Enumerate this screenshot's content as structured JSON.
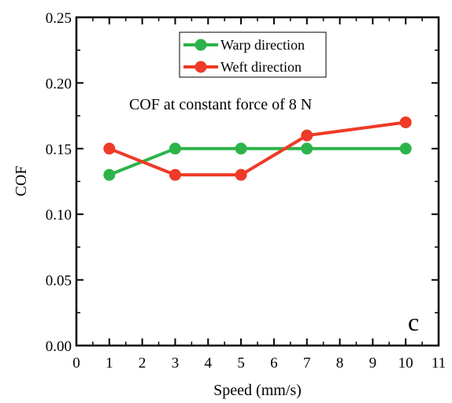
{
  "chart_data": {
    "type": "line",
    "title": "",
    "xlabel": "Speed (mm/s)",
    "ylabel": "COF",
    "xlim": [
      0,
      11
    ],
    "ylim": [
      0,
      0.25
    ],
    "x_ticks": [
      "0",
      "1",
      "2",
      "3",
      "4",
      "5",
      "6",
      "7",
      "8",
      "9",
      "10",
      "11"
    ],
    "y_ticks": [
      "0.00",
      "0.05",
      "0.10",
      "0.15",
      "0.20",
      "0.25"
    ],
    "grid": false,
    "legend_position": "top-center",
    "annotation": "COF at constant force of 8 N",
    "panel_label": "c",
    "series": [
      {
        "name": "Warp direction",
        "color": "#2db34a",
        "x": [
          1,
          3,
          5,
          7,
          10
        ],
        "y": [
          0.13,
          0.15,
          0.15,
          0.15,
          0.15
        ]
      },
      {
        "name": "Weft direction",
        "color": "#ee3a27",
        "x": [
          1,
          3,
          5,
          7,
          10
        ],
        "y": [
          0.15,
          0.13,
          0.13,
          0.16,
          0.17
        ]
      }
    ]
  }
}
